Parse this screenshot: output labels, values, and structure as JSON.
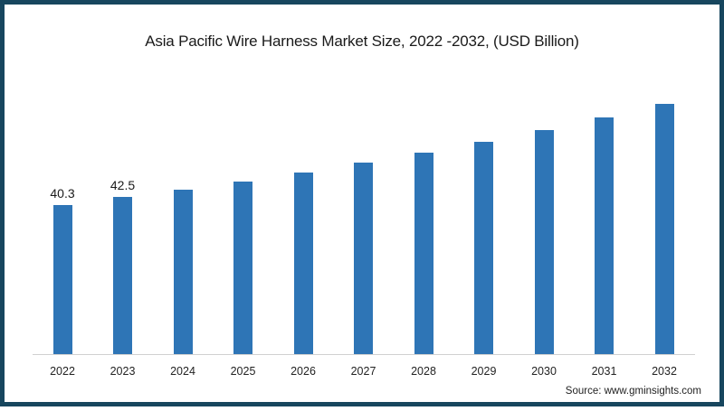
{
  "title": "Asia Pacific Wire Harness Market Size, 2022 -2032, (USD Billion)",
  "source": "Source: www.gminsights.com",
  "colors": {
    "bar": "#2e75b6",
    "border": "#17465e",
    "axis": "#d0d0d0"
  },
  "chart_data": {
    "type": "bar",
    "title": "Asia Pacific Wire Harness Market Size, 2022 -2032, (USD Billion)",
    "xlabel": "",
    "ylabel": "USD Billion",
    "categories": [
      "2022",
      "2023",
      "2024",
      "2025",
      "2026",
      "2027",
      "2028",
      "2029",
      "2030",
      "2031",
      "2032"
    ],
    "values": [
      40.3,
      42.5,
      44.4,
      46.6,
      49.1,
      51.8,
      54.5,
      57.4,
      60.6,
      64.0,
      67.7
    ],
    "data_labels": {
      "2022": "40.3",
      "2023": "42.5"
    },
    "ylim": [
      0,
      70
    ],
    "grid": false,
    "legend": "none",
    "source": "Source: www.gminsights.com"
  }
}
